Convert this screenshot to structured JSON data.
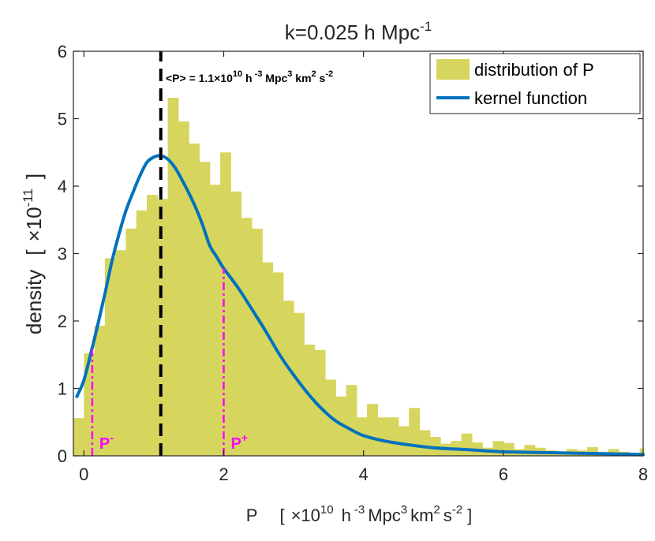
{
  "chart_data": {
    "type": "bar",
    "title": {
      "main": "k=0.025 h Mpc",
      "sup": "-1"
    },
    "xlabel": {
      "prefix": "P",
      "open": "[",
      "times": "×10",
      "e10": "10",
      "h": "h",
      "hexp": "-3",
      "mpc": "Mpc",
      "mpcexp": "3",
      "km": "km",
      "kmexp": "2",
      "s": "s",
      "sexp": "-2",
      "close": "]"
    },
    "ylabel": {
      "main": "density",
      "open": "[",
      "times": "×10",
      "exp": "-11",
      "close": "]"
    },
    "xlim": [
      -0.15,
      8
    ],
    "ylim": [
      0,
      6
    ],
    "xticks": [
      0,
      2,
      4,
      6,
      8
    ],
    "yticks": [
      0,
      1,
      2,
      3,
      4,
      5,
      6
    ],
    "bin_width": 0.15,
    "bins_start": -0.15,
    "histogram_values": [
      0.56,
      1.52,
      1.93,
      2.93,
      3.05,
      3.37,
      3.64,
      3.87,
      3.81,
      5.31,
      4.96,
      4.63,
      4.36,
      4.02,
      4.5,
      3.92,
      3.53,
      3.37,
      2.87,
      2.72,
      2.3,
      2.12,
      1.65,
      1.57,
      1.13,
      0.88,
      1.05,
      0.57,
      0.77,
      0.57,
      0.57,
      0.44,
      0.71,
      0.38,
      0.28,
      0.18,
      0.22,
      0.33,
      0.2,
      0.12,
      0.22,
      0.19,
      0.1,
      0.16,
      0.12,
      0.08,
      0.05,
      0.1,
      0.08,
      0.13,
      0.05,
      0.1,
      0.06,
      0.02,
      0.11
    ],
    "kernel_x": [
      -0.1,
      0.0,
      0.1,
      0.2,
      0.3,
      0.4,
      0.5,
      0.6,
      0.7,
      0.8,
      0.9,
      1.0,
      1.1,
      1.2,
      1.3,
      1.4,
      1.5,
      1.6,
      1.7,
      1.8,
      1.9,
      2.0,
      2.2,
      2.4,
      2.6,
      2.8,
      3.0,
      3.2,
      3.4,
      3.6,
      3.8,
      4.0,
      4.3,
      4.6,
      5.0,
      5.5,
      6.0,
      6.5,
      7.0,
      7.5,
      8.0
    ],
    "kernel_y": [
      0.88,
      1.12,
      1.52,
      1.95,
      2.4,
      2.88,
      3.28,
      3.63,
      3.9,
      4.15,
      4.35,
      4.43,
      4.45,
      4.4,
      4.28,
      4.1,
      3.9,
      3.68,
      3.42,
      3.12,
      2.95,
      2.78,
      2.5,
      2.18,
      1.85,
      1.5,
      1.2,
      0.93,
      0.7,
      0.52,
      0.4,
      0.3,
      0.22,
      0.17,
      0.12,
      0.09,
      0.06,
      0.05,
      0.04,
      0.03,
      0.02
    ],
    "mean_value": 1.1,
    "mean_label": {
      "prefix": "<P> = 1.1",
      "times": "×10",
      "e10": "10",
      "h": " h",
      "hexp": " -3",
      "mpc": " Mpc",
      "mpcexp": "3",
      "km": " km",
      "kmexp": "2",
      "s": " s",
      "sexp": "-2"
    },
    "p_minus": {
      "x": 0.12,
      "y": 1.58,
      "label": "P",
      "sup": "-"
    },
    "p_plus": {
      "x": 2.0,
      "y": 2.78,
      "label": "P",
      "sup": "+"
    },
    "legend": {
      "position": "top-right",
      "entries": [
        "distribution of P",
        "kernel function"
      ]
    },
    "colors": {
      "hist": "#d6d65e",
      "kernel": "#0072bd",
      "mean": "#000000",
      "interval": "#ff00ff",
      "axes": "#262626"
    }
  }
}
